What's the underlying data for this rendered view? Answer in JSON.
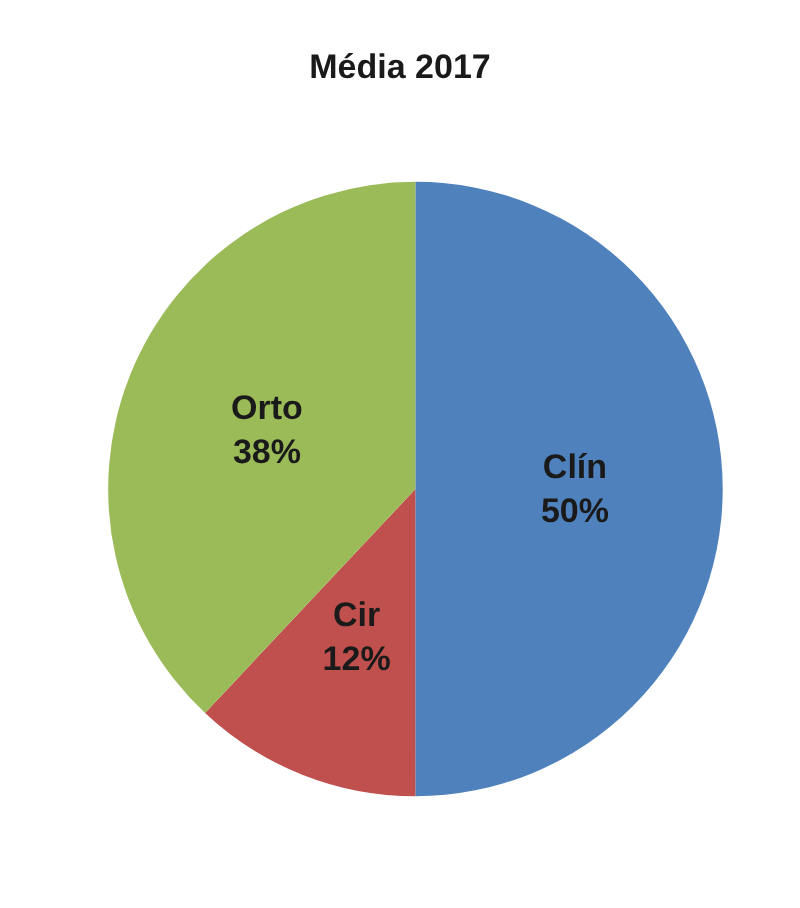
{
  "chart_data": {
    "type": "pie",
    "title": "Média 2017",
    "categories": [
      "Clín",
      "Cir",
      "Orto"
    ],
    "values": [
      50,
      12,
      38
    ],
    "colors": [
      "#4f81bd",
      "#c0504d",
      "#9bbb59"
    ],
    "value_labels": [
      "50%",
      "12%",
      "38%"
    ],
    "legend": false
  }
}
